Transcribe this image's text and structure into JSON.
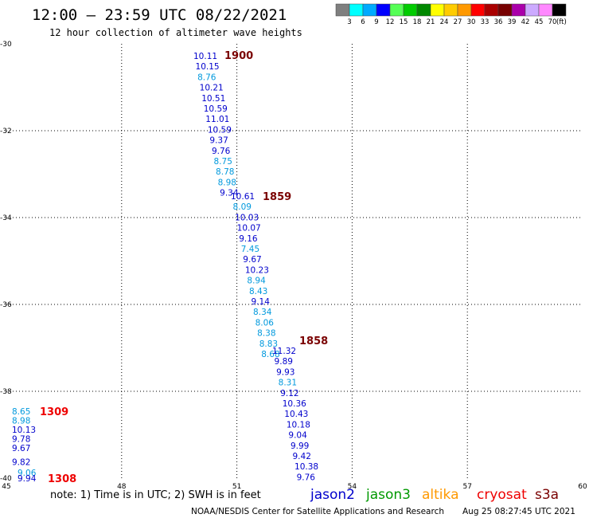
{
  "header": {
    "title": "12:00 – 23:59 UTC 08/22/2021",
    "subtitle": "12 hour collection of altimeter wave heights"
  },
  "colorbar": {
    "labels": [
      "3",
      "6",
      "9",
      "12",
      "15",
      "18",
      "21",
      "24",
      "27",
      "30",
      "33",
      "36",
      "39",
      "42",
      "45",
      "70"
    ],
    "unit": "(ft)",
    "colors": [
      "#7f7f7f",
      "#00ffff",
      "#00aaff",
      "#0000ff",
      "#55ff55",
      "#00cc00",
      "#008800",
      "#ffff00",
      "#ffcc00",
      "#ff9900",
      "#ff0000",
      "#aa0000",
      "#770000",
      "#aa00aa",
      "#ccaaff",
      "#ff88ff",
      "#000000"
    ]
  },
  "axes": {
    "x_ticks": [
      "45",
      "48",
      "51",
      "54",
      "57",
      "60"
    ],
    "y_ticks": [
      "-30",
      "-32",
      "-34",
      "-36",
      "-38",
      "-40"
    ]
  },
  "tracks": [
    {
      "time_label": "1900",
      "time_color": "#7a0000",
      "values": [
        "10.11",
        "10.15",
        "8.76",
        "10.21",
        "10.51",
        "10.59",
        "11.01",
        "10.59",
        "9.37",
        "9.76",
        "8.75",
        "8.78",
        "8.98",
        "9.34"
      ],
      "colors": [
        "#0000cc",
        "#0000cc",
        "#0099dd",
        "#0000cc",
        "#0000cc",
        "#0000cc",
        "#0000cc",
        "#0000cc",
        "#0000cc",
        "#0000cc",
        "#0099dd",
        "#0099dd",
        "#0099dd",
        "#0000cc"
      ]
    },
    {
      "time_label": "1859",
      "time_color": "#7a0000",
      "values": [
        "10.61",
        "8.09",
        "10.03",
        "10.07",
        "9.16",
        "7.45",
        "9.67",
        "10.23",
        "8.94",
        "8.43",
        "9.14",
        "8.34",
        "8.06",
        "8.38",
        "8.83",
        "8.68"
      ],
      "colors": [
        "#0000cc",
        "#0099dd",
        "#0000cc",
        "#0000cc",
        "#0000cc",
        "#0099dd",
        "#0000cc",
        "#0000cc",
        "#0099dd",
        "#0099dd",
        "#0000cc",
        "#0099dd",
        "#0099dd",
        "#0099dd",
        "#0099dd",
        "#0099dd"
      ]
    },
    {
      "time_label": "1858",
      "time_color": "#7a0000",
      "values": [
        "11.32",
        "9.89",
        "9.93",
        "8.31",
        "9.12",
        "10.36",
        "10.43",
        "10.18",
        "9.04",
        "9.99",
        "9.42",
        "10.38",
        "9.76"
      ],
      "colors": [
        "#0000cc",
        "#0000cc",
        "#0000cc",
        "#0099dd",
        "#0000cc",
        "#0000cc",
        "#0000cc",
        "#0000cc",
        "#0000cc",
        "#0000cc",
        "#0000cc",
        "#0000cc",
        "#0000cc"
      ]
    },
    {
      "time_label": "1309",
      "time_color": "#ee0000",
      "values": [
        "8.65",
        "8.98",
        "10.13",
        "9.78",
        "9.67",
        "9.82"
      ],
      "colors": [
        "#0099dd",
        "#0099dd",
        "#0000cc",
        "#0000cc",
        "#0000cc",
        "#0000cc"
      ]
    },
    {
      "time_label": "1308",
      "time_color": "#ee0000",
      "values": [
        "9.06",
        "9.94"
      ],
      "colors": [
        "#0099dd",
        "#0000cc"
      ]
    }
  ],
  "footer": {
    "note": "note:  1) Time is in UTC;  2) SWH is in feet",
    "legend": [
      {
        "name": "jason2",
        "color": "#0000cc"
      },
      {
        "name": "jason3",
        "color": "#009900"
      },
      {
        "name": "altika",
        "color": "#ff9900"
      },
      {
        "name": "cryosat",
        "color": "#ee0000"
      },
      {
        "name": "s3a",
        "color": "#7a0000"
      }
    ],
    "credit": "NOAA/NESDIS Center for Satellite Applications and Research",
    "timestamp": "Aug 25 08:27:45 UTC 2021"
  }
}
